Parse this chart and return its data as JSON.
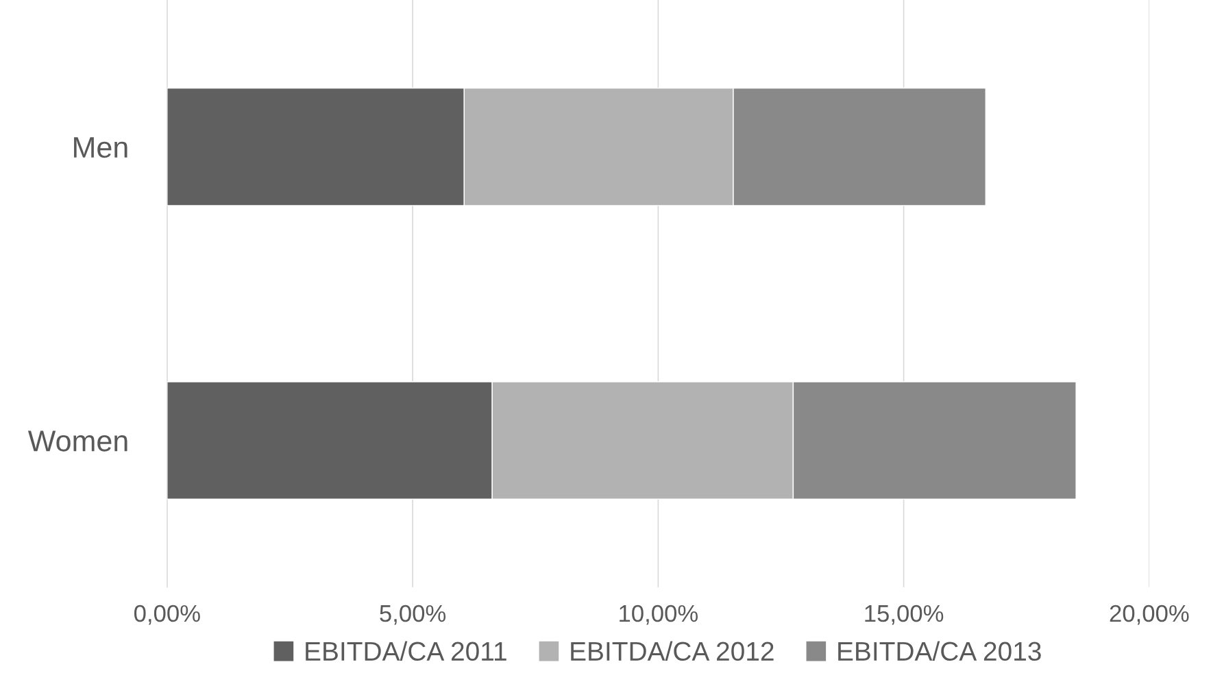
{
  "chart_data": {
    "type": "bar",
    "orientation": "horizontal",
    "stacked": true,
    "categories": [
      "Men",
      "Women"
    ],
    "series": [
      {
        "name": "EBITDA/CA 2011",
        "color": "#606060",
        "values": [
          6.05,
          6.62
        ]
      },
      {
        "name": "EBITDA/CA 2012",
        "color": "#b2b2b2",
        "values": [
          5.48,
          6.13
        ]
      },
      {
        "name": "EBITDA/CA 2013",
        "color": "#898989",
        "values": [
          5.14,
          5.76
        ]
      }
    ],
    "xlim": [
      0,
      20
    ],
    "xticks": [
      {
        "value": 0,
        "label": "0,00%"
      },
      {
        "value": 5,
        "label": "5,00%"
      },
      {
        "value": 10,
        "label": "10,00%"
      },
      {
        "value": 15,
        "label": "15,00%"
      },
      {
        "value": 20,
        "label": "20,00%"
      }
    ],
    "grid": "x",
    "legend": "bottom"
  }
}
